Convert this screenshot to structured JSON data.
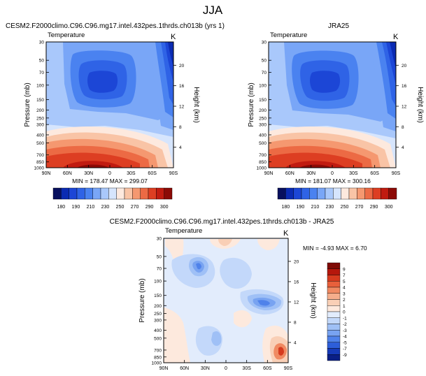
{
  "page_title": "JJA",
  "chart_data": [
    {
      "id": "model",
      "type": "heatmap",
      "title": "CESM2.F2000climo.C96.C96.mg17.intel.432pes.1thrds.ch013b (yrs 1)",
      "field_label": "Temperature",
      "units": "K",
      "ylabel": "Pressure (mb)",
      "ylabel_right": "Height (km)",
      "x_ticks": [
        "90N",
        "60N",
        "30N",
        "0",
        "30S",
        "60S",
        "90S"
      ],
      "y_ticks": [
        "30",
        "50",
        "70",
        "100",
        "150",
        "200",
        "250",
        "300",
        "400",
        "500",
        "700",
        "850",
        "1000"
      ],
      "height_ticks": [
        "20",
        "16",
        "12",
        "8",
        "4"
      ],
      "stats": "MIN = 178.47  MAX = 299.07",
      "colorbar_ticks": [
        "180",
        "190",
        "210",
        "230",
        "250",
        "270",
        "290",
        "300"
      ],
      "palette": [
        "#08105e",
        "#0b2bb3",
        "#1c46d6",
        "#2f63e6",
        "#4a82f0",
        "#79a6f7",
        "#a9c8fb",
        "#d6e5fd",
        "#fde9de",
        "#f9c4a6",
        "#f59870",
        "#ec6a44",
        "#dd3e22",
        "#c11b10",
        "#8c0a06"
      ]
    },
    {
      "id": "obs",
      "type": "heatmap",
      "title": "JRA25",
      "field_label": "Temperature",
      "units": "K",
      "ylabel": "Pressure (mb)",
      "ylabel_right": "Height (km)",
      "x_ticks": [
        "90N",
        "60N",
        "30N",
        "0",
        "30S",
        "60S",
        "90S"
      ],
      "y_ticks": [
        "30",
        "50",
        "70",
        "100",
        "150",
        "200",
        "250",
        "300",
        "400",
        "500",
        "700",
        "850",
        "1000"
      ],
      "height_ticks": [
        "20",
        "16",
        "12",
        "8",
        "4"
      ],
      "stats": "MIN = 181.07  MAX = 300.16",
      "colorbar_ticks": [
        "180",
        "190",
        "210",
        "230",
        "250",
        "270",
        "290",
        "300"
      ]
    },
    {
      "id": "diff",
      "type": "heatmap",
      "title": "CESM2.F2000climo.C96.C96.mg17.intel.432pes.1thrds.ch013b - JRA25",
      "field_label": "Temperature",
      "units": "K",
      "ylabel": "Pressure (mb)",
      "ylabel_right": "Height (km)",
      "x_ticks": [
        "90N",
        "60N",
        "30N",
        "0",
        "30S",
        "60S",
        "90S"
      ],
      "y_ticks": [
        "30",
        "50",
        "70",
        "100",
        "150",
        "200",
        "250",
        "300",
        "400",
        "500",
        "700",
        "850",
        "1000"
      ],
      "height_ticks": [
        "20",
        "16",
        "12",
        "8",
        "4"
      ],
      "stats": "MIN = -4.93  MAX =   6.70",
      "colorbar_ticks": [
        "9",
        "7",
        "5",
        "4",
        "3",
        "2",
        "1",
        "0",
        "-1",
        "-2",
        "-3",
        "-4",
        "-5",
        "-7",
        "-9"
      ],
      "palette": [
        "#7f0a05",
        "#b5170c",
        "#d63a1e",
        "#e8603b",
        "#f08a62",
        "#f5ae8c",
        "#f9cfb6",
        "#fde9dd",
        "#e2ecfc",
        "#c3d8fa",
        "#9fc0f6",
        "#78a3f1",
        "#4f82ea",
        "#2d5ed9",
        "#163ab8",
        "#0a1f86"
      ]
    }
  ]
}
